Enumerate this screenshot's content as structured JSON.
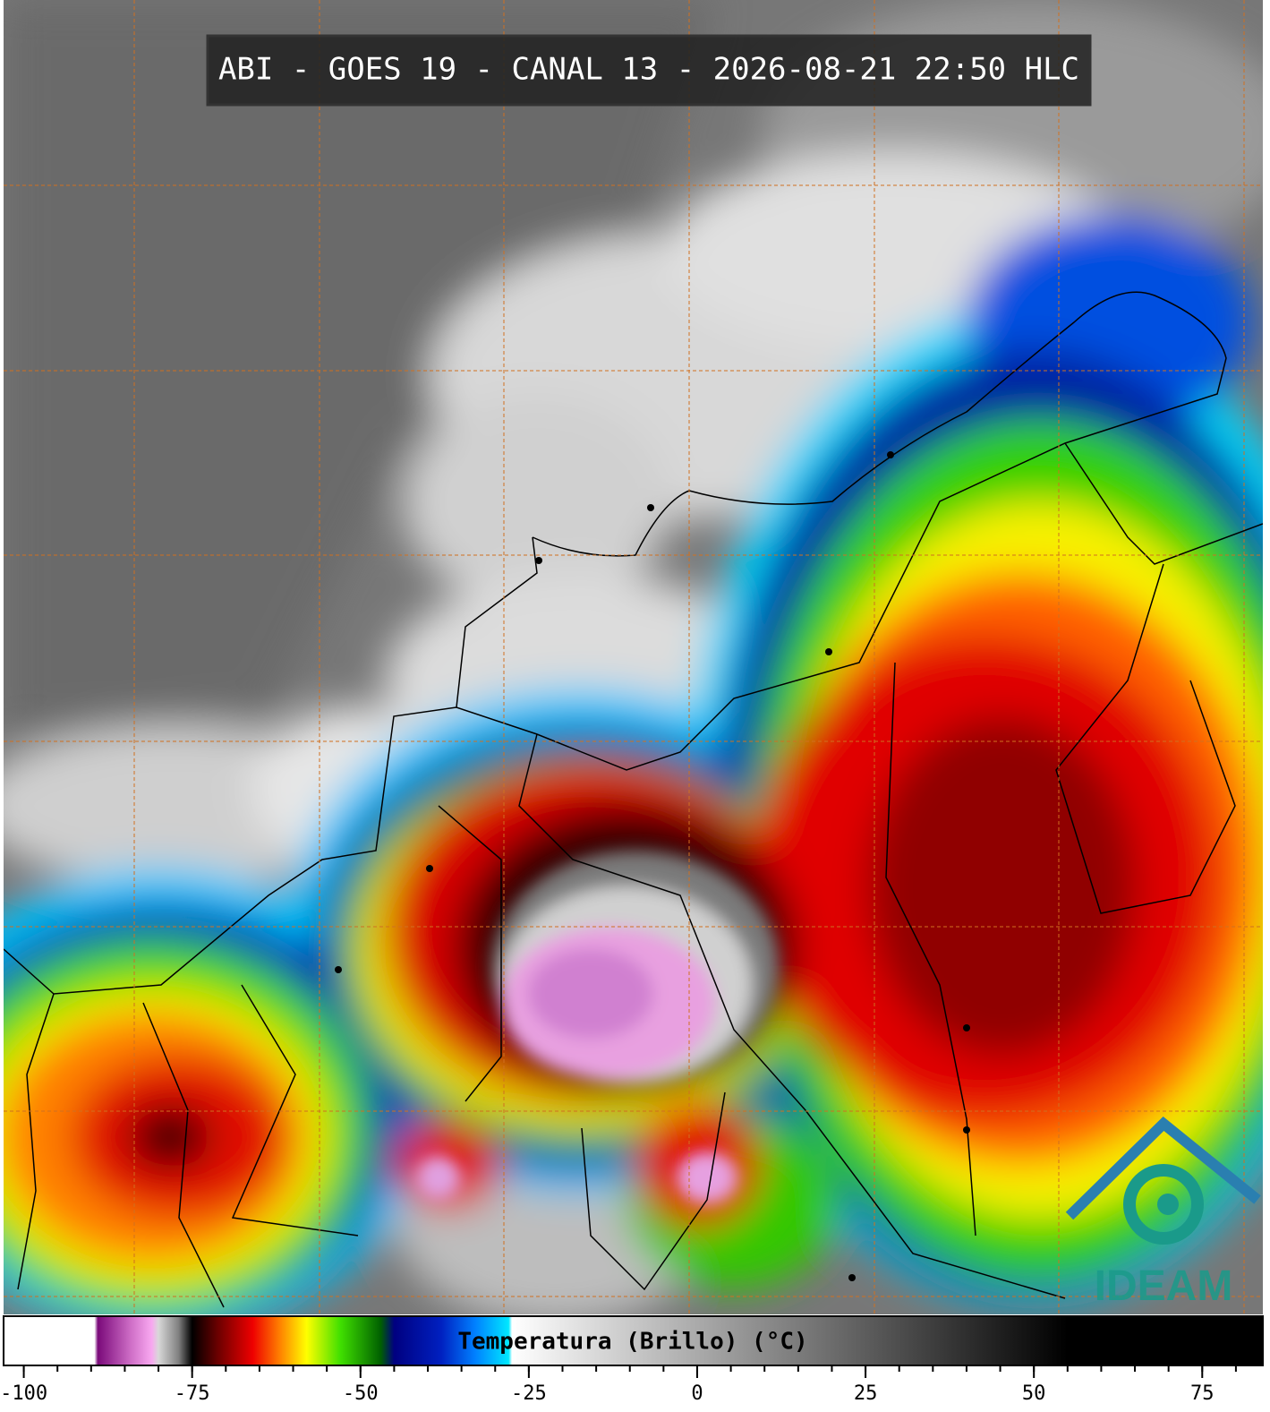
{
  "title": "ABI - GOES 19 - CANAL 13 - 2026-08-21 22:50 HLC",
  "colorbar": {
    "label": "Temperatura (Brillo) (°C)",
    "lim": [
      -103,
      84
    ],
    "ticks": [
      -100,
      -75,
      -50,
      -25,
      0,
      25,
      50,
      75
    ],
    "minor_ticks": [
      -100,
      -95,
      -90,
      -85,
      -80,
      -75,
      -70,
      -65,
      -60,
      -55,
      -50,
      -45,
      -40,
      -35,
      -30,
      -25,
      -20,
      -15,
      -10,
      -5,
      0,
      5,
      10,
      15,
      20,
      25,
      30,
      35,
      40,
      45,
      50,
      55,
      60,
      65,
      70,
      75,
      80
    ],
    "colormap": [
      {
        "value": -103,
        "color": "#ffffff"
      },
      {
        "value": -89.5,
        "color": "#ffffff"
      },
      {
        "value": -89,
        "color": "#7a0a7a"
      },
      {
        "value": -84,
        "color": "#d070c8"
      },
      {
        "value": -81,
        "color": "#f8a8f0"
      },
      {
        "value": -80,
        "color": "#d8d8d8"
      },
      {
        "value": -77,
        "color": "#808080"
      },
      {
        "value": -75,
        "color": "#000000"
      },
      {
        "value": -71,
        "color": "#700000"
      },
      {
        "value": -66,
        "color": "#ee0000"
      },
      {
        "value": -62,
        "color": "#ff8000"
      },
      {
        "value": -58,
        "color": "#ffff00"
      },
      {
        "value": -53,
        "color": "#40e000"
      },
      {
        "value": -47,
        "color": "#006000"
      },
      {
        "value": -45,
        "color": "#000080"
      },
      {
        "value": -38,
        "color": "#0020c0"
      },
      {
        "value": -33,
        "color": "#0080ff"
      },
      {
        "value": -28,
        "color": "#00e8ff"
      },
      {
        "value": -27.5,
        "color": "#ffffff"
      },
      {
        "value": 55,
        "color": "#000000"
      },
      {
        "value": 84,
        "color": "#000000"
      }
    ]
  },
  "logo": "IDEAM"
}
